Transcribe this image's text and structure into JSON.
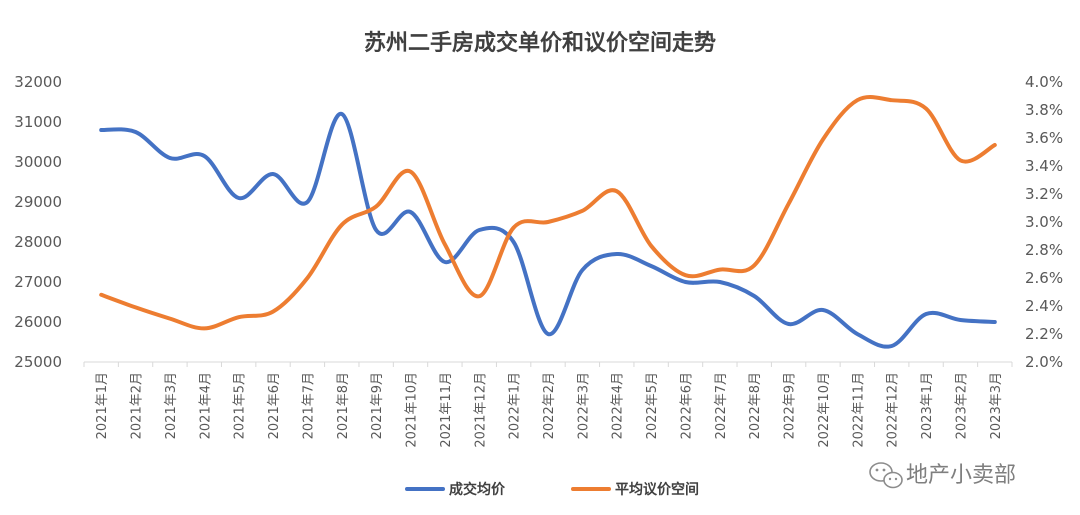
{
  "chart_data": {
    "type": "line",
    "title": "苏州二手房成交单价和议价空间走势",
    "categories": [
      "2021年1月",
      "2021年2月",
      "2021年3月",
      "2021年4月",
      "2021年5月",
      "2021年6月",
      "2021年7月",
      "2021年8月",
      "2021年9月",
      "2021年10月",
      "2021年11月",
      "2021年12月",
      "2022年1月",
      "2022年2月",
      "2022年3月",
      "2022年4月",
      "2022年5月",
      "2022年6月",
      "2022年7月",
      "2022年8月",
      "2022年9月",
      "2022年10月",
      "2022年11月",
      "2022年12月",
      "2023年1月",
      "2023年2月",
      "2023年3月"
    ],
    "y_left": {
      "min": 25000,
      "max": 32000,
      "ticks": [
        "25000",
        "26000",
        "27000",
        "28000",
        "29000",
        "30000",
        "31000",
        "32000"
      ]
    },
    "y_right": {
      "min": 0.02,
      "max": 0.04,
      "ticks": [
        "2.0%",
        "2.2%",
        "2.4%",
        "2.6%",
        "2.8%",
        "3.0%",
        "3.2%",
        "3.4%",
        "3.6%",
        "3.8%",
        "4.0%"
      ]
    },
    "series": [
      {
        "name": "成交均价",
        "axis": "left",
        "color": "#4472C4",
        "values": [
          30800,
          30750,
          30100,
          30150,
          29100,
          29700,
          29000,
          31200,
          28300,
          28750,
          27500,
          28300,
          28000,
          25700,
          27300,
          27700,
          27400,
          27000,
          27000,
          26650,
          25950,
          26300,
          25700,
          25400,
          26200,
          26050,
          26000
        ]
      },
      {
        "name": "平均议价空间",
        "axis": "right",
        "color": "#ED7D31",
        "values": [
          0.0248,
          0.0239,
          0.0231,
          0.0224,
          0.0232,
          0.0236,
          0.026,
          0.0298,
          0.0311,
          0.0336,
          0.0284,
          0.0247,
          0.0296,
          0.03,
          0.0308,
          0.0322,
          0.0283,
          0.0262,
          0.0266,
          0.0269,
          0.0313,
          0.0359,
          0.0387,
          0.0387,
          0.0381,
          0.0344,
          0.0355
        ]
      }
    ],
    "legend_position": "bottom",
    "grid": false
  },
  "watermark": {
    "text": "地产小卖部",
    "icon": "wechat-icon"
  }
}
